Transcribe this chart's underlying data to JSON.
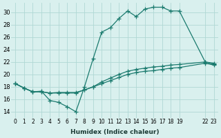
{
  "xlabel": "Humidex (Indice chaleur)",
  "ylabel": "",
  "bg_color": "#d9f0ee",
  "grid_color": "#b0d8d4",
  "line_color": "#1a7a6e",
  "xlim": [
    -0.5,
    23.5
  ],
  "ylim": [
    13,
    31.5
  ],
  "yticks": [
    14,
    16,
    18,
    20,
    22,
    24,
    26,
    28,
    30
  ],
  "xtick_positions": [
    0,
    1,
    2,
    3,
    4,
    5,
    6,
    7,
    8,
    9,
    10,
    11,
    12,
    13,
    14,
    15,
    16,
    17,
    18,
    19,
    22,
    23
  ],
  "xtick_labels": [
    "0",
    "1",
    "2",
    "3",
    "4",
    "5",
    "6",
    "7",
    "8",
    "9",
    "10",
    "11",
    "12",
    "13",
    "14",
    "15",
    "16",
    "17",
    "18",
    "19",
    "22",
    "23"
  ],
  "series": [
    {
      "x": [
        0,
        1,
        2,
        3,
        4,
        5,
        6,
        7,
        8,
        9,
        10,
        11,
        12,
        13,
        14,
        15,
        16,
        17,
        18,
        19,
        22,
        23
      ],
      "y": [
        18.5,
        17.8,
        17.2,
        17.3,
        15.8,
        15.5,
        14.8,
        14.0,
        18.0,
        22.5,
        26.8,
        27.5,
        29.0,
        30.2,
        29.3,
        30.5,
        30.8,
        30.8,
        30.2,
        30.2,
        22.0,
        21.6
      ]
    },
    {
      "x": [
        0,
        1,
        2,
        3,
        4,
        5,
        6,
        7,
        8,
        9,
        10,
        11,
        12,
        13,
        14,
        15,
        16,
        17,
        18,
        19,
        22,
        23
      ],
      "y": [
        18.5,
        17.8,
        17.2,
        17.2,
        17.0,
        17.0,
        17.0,
        17.0,
        17.5,
        18.0,
        18.5,
        19.0,
        19.5,
        20.0,
        20.3,
        20.5,
        20.6,
        20.8,
        21.0,
        21.1,
        21.8,
        21.5
      ]
    },
    {
      "x": [
        0,
        1,
        2,
        3,
        4,
        5,
        6,
        7,
        8,
        9,
        10,
        11,
        12,
        13,
        14,
        15,
        16,
        17,
        18,
        19,
        22,
        23
      ],
      "y": [
        18.5,
        17.8,
        17.2,
        17.2,
        17.0,
        17.1,
        17.1,
        17.1,
        17.5,
        18.0,
        18.8,
        19.4,
        20.0,
        20.5,
        20.8,
        21.0,
        21.2,
        21.3,
        21.5,
        21.6,
        22.0,
        21.8
      ]
    }
  ]
}
